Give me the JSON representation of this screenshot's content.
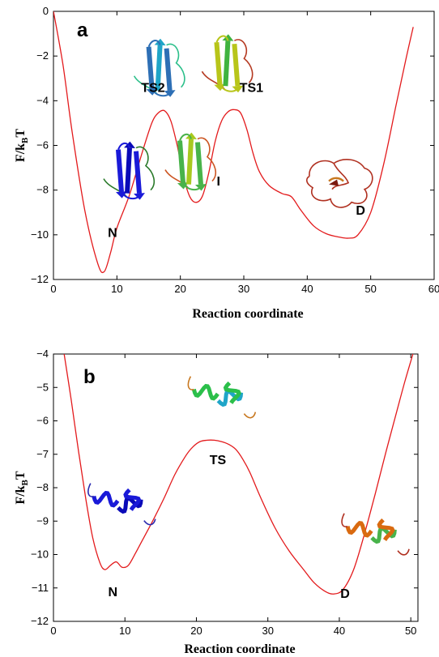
{
  "chart_data": [
    {
      "panel": "a",
      "type": "line",
      "xlabel": "Reaction coordinate",
      "ylabel": {
        "main": "F/k",
        "sub1": "B",
        "tail": "T"
      },
      "xlim": [
        0,
        60
      ],
      "ylim": [
        -12,
        0
      ],
      "xticks": [
        0,
        10,
        20,
        30,
        40,
        50,
        60
      ],
      "yticks": [
        0,
        -2,
        -4,
        -6,
        -8,
        -10,
        -12
      ],
      "grid": false,
      "color": "#e31a1c",
      "series": [
        {
          "x": [
            0,
            1.5,
            3,
            5,
            7,
            8,
            9,
            10,
            12,
            14,
            15.5,
            16.5,
            17.5,
            18.5,
            19.5,
            20.5,
            21.5,
            22.5,
            23.5,
            24.5,
            25.5,
            26.5,
            27.5,
            28.5,
            29.5,
            30.5,
            31.5,
            32.5,
            34,
            36,
            37.5,
            39,
            41,
            43,
            45,
            46.5,
            48,
            50,
            52,
            54,
            55.5,
            56.7
          ],
          "y": [
            0,
            -2.4,
            -5.5,
            -9.0,
            -11.3,
            -11.65,
            -10.8,
            -9.7,
            -8.2,
            -6.3,
            -5.0,
            -4.55,
            -4.45,
            -4.9,
            -6.0,
            -7.4,
            -8.3,
            -8.55,
            -8.25,
            -7.2,
            -5.8,
            -4.9,
            -4.5,
            -4.4,
            -4.55,
            -5.3,
            -6.4,
            -7.2,
            -7.8,
            -8.15,
            -8.3,
            -8.9,
            -9.6,
            -9.95,
            -10.1,
            -10.15,
            -10.0,
            -9.0,
            -6.9,
            -4.2,
            -2.2,
            -0.7
          ]
        }
      ],
      "annotations": [
        {
          "text": "N",
          "x": 9.3,
          "y": -10.1
        },
        {
          "text": "TS2",
          "x": 15.7,
          "y": -3.6
        },
        {
          "text": "TS1",
          "x": 31.2,
          "y": -3.6
        },
        {
          "text": "I",
          "x": 26.0,
          "y": -7.8
        },
        {
          "text": "D",
          "x": 48.4,
          "y": -9.1
        }
      ],
      "structures": [
        {
          "name": "native-beta-structure",
          "x": 12.0,
          "y": -7.2,
          "colors": [
            "#1a1ad8",
            "#0a0ab8",
            "#2a7a2a"
          ]
        },
        {
          "name": "ts2-beta-structure",
          "x": 16.8,
          "y": -2.6,
          "colors": [
            "#2d6fb5",
            "#1fa5c8",
            "#2bbf8a"
          ]
        },
        {
          "name": "ts1-beta-structure",
          "x": 27.5,
          "y": -2.4,
          "colors": [
            "#b8c51a",
            "#3fb33f",
            "#b53a22"
          ]
        },
        {
          "name": "intermediate-beta-structure",
          "x": 21.7,
          "y": -6.8,
          "colors": [
            "#48b34a",
            "#a8c91f",
            "#cc5522"
          ]
        },
        {
          "name": "denatured-coil-structure",
          "x": 45.2,
          "y": -7.6,
          "colors": [
            "#b03020",
            "#c87820",
            "#7a1a10"
          ]
        }
      ]
    },
    {
      "panel": "b",
      "type": "line",
      "xlabel": "Reaction coordinate",
      "ylabel": {
        "main": "F/k",
        "sub1": "B",
        "tail": "T"
      },
      "xlim": [
        0,
        51
      ],
      "ylim": [
        -12,
        -4
      ],
      "xticks": [
        0,
        10,
        20,
        30,
        40,
        50
      ],
      "yticks": [
        -4,
        -5,
        -6,
        -7,
        -8,
        -9,
        -10,
        -11,
        -12
      ],
      "grid": false,
      "color": "#e31a1c",
      "series": [
        {
          "x": [
            1.5,
            2.5,
            3.5,
            4.5,
            5.5,
            6.5,
            7.2,
            8.0,
            8.8,
            9.6,
            10.5,
            11.5,
            12.5,
            14,
            15.5,
            17,
            18.5,
            19.5,
            20.5,
            21.5,
            22.5,
            23.5,
            24.5,
            25.5,
            26.5,
            27.5,
            29,
            31,
            33,
            35,
            36.5,
            38,
            39.2,
            40.5,
            42,
            43.5,
            45,
            46.5,
            48,
            49.2,
            50.3
          ],
          "y": [
            -4.0,
            -5.4,
            -6.9,
            -8.3,
            -9.5,
            -10.25,
            -10.45,
            -10.32,
            -10.22,
            -10.38,
            -10.32,
            -9.95,
            -9.55,
            -8.95,
            -8.3,
            -7.6,
            -7.05,
            -6.78,
            -6.62,
            -6.58,
            -6.58,
            -6.62,
            -6.7,
            -6.85,
            -7.15,
            -7.55,
            -8.3,
            -9.2,
            -9.9,
            -10.45,
            -10.85,
            -11.1,
            -11.18,
            -11.05,
            -10.45,
            -9.4,
            -8.2,
            -6.95,
            -5.75,
            -4.8,
            -4.0
          ]
        }
      ],
      "annotations": [
        {
          "text": "N",
          "x": 8.3,
          "y": -11.25
        },
        {
          "text": "TS",
          "x": 23.0,
          "y": -7.3
        },
        {
          "text": "D",
          "x": 40.8,
          "y": -11.3
        }
      ],
      "structures": [
        {
          "name": "native-helix-structure",
          "x": 9.5,
          "y": -8.5,
          "colors": [
            "#1a1ad8",
            "#0a0ab8",
            "#2a2ab0"
          ]
        },
        {
          "name": "ts-helix-structure",
          "x": 23.5,
          "y": -5.3,
          "colors": [
            "#2bbf4a",
            "#1fa5c8",
            "#c87820"
          ]
        },
        {
          "name": "denatured-helix-structure",
          "x": 45.0,
          "y": -9.4,
          "colors": [
            "#d96a10",
            "#48b34a",
            "#b03020"
          ]
        }
      ]
    }
  ]
}
